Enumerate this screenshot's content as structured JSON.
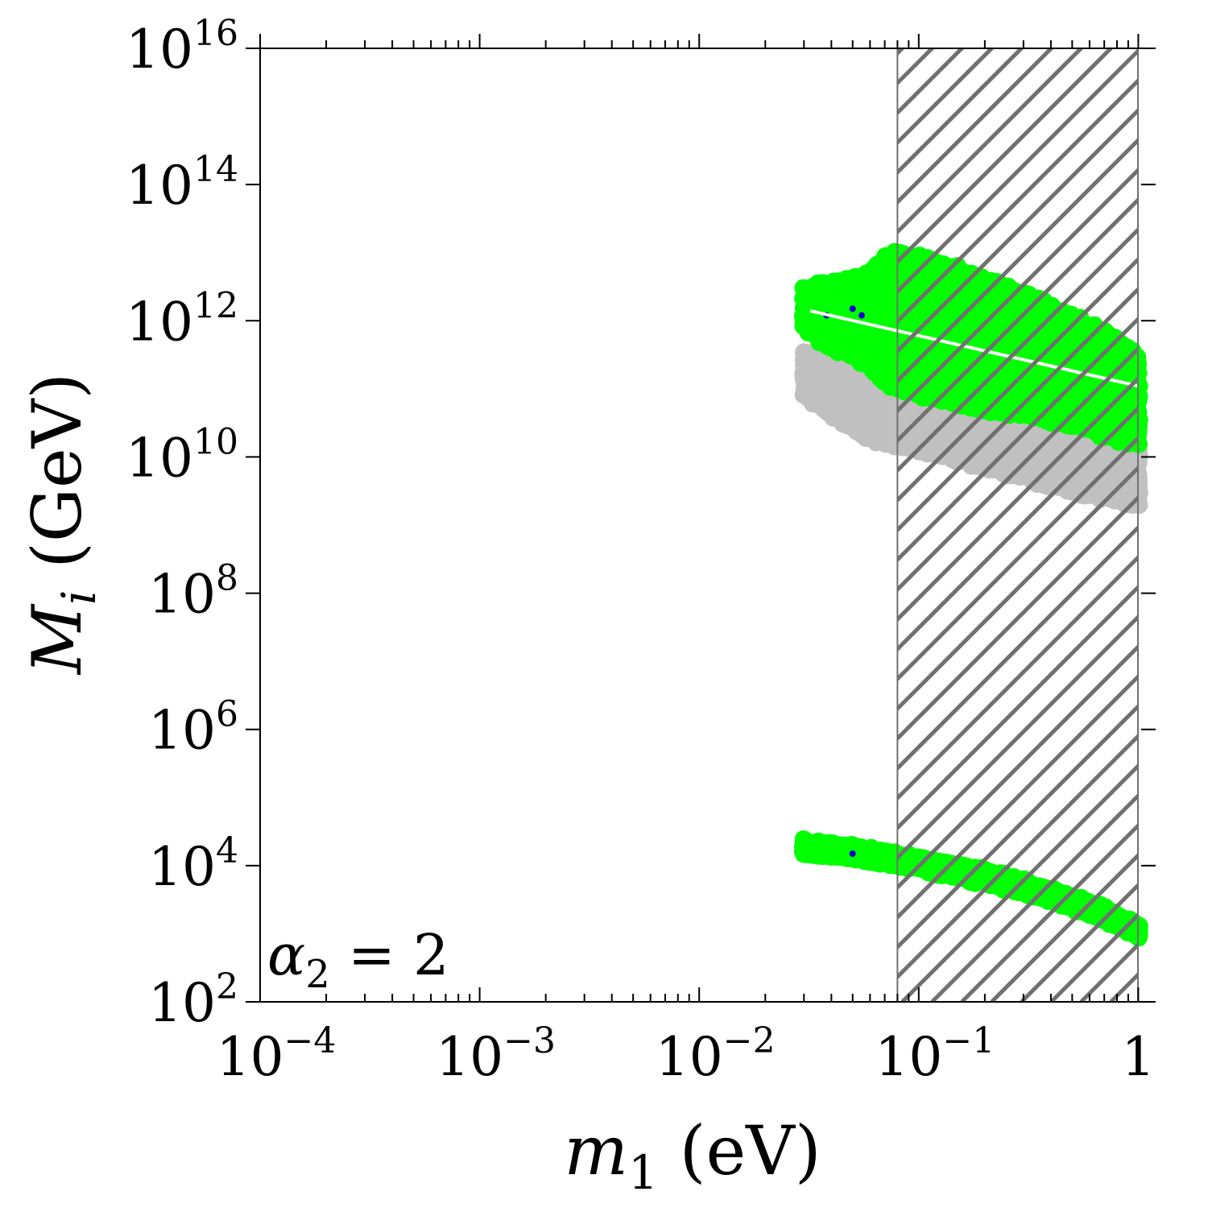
{
  "chart_data": {
    "type": "scatter",
    "x_scale": "log",
    "y_scale": "log",
    "xlim": [
      0.0001,
      1.2
    ],
    "ylim": [
      100,
      1e+16
    ],
    "xlabel": {
      "var": "m",
      "sub": "1",
      "unit": "(eV)"
    },
    "ylabel": {
      "var": "M",
      "sub": "i",
      "unit": "(GeV)"
    },
    "x_ticks": [
      {
        "value": 0.0001,
        "base": "10",
        "exp": "−4"
      },
      {
        "value": 0.001,
        "base": "10",
        "exp": "−3"
      },
      {
        "value": 0.01,
        "base": "10",
        "exp": "−2"
      },
      {
        "value": 0.1,
        "base": "10",
        "exp": "−1"
      },
      {
        "value": 1,
        "base": "1",
        "exp": ""
      }
    ],
    "y_ticks": [
      {
        "value": 100,
        "base": "10",
        "exp": "2"
      },
      {
        "value": 10000,
        "base": "10",
        "exp": "4"
      },
      {
        "value": 1000000,
        "base": "10",
        "exp": "6"
      },
      {
        "value": 100000000,
        "base": "10",
        "exp": "8"
      },
      {
        "value": 10000000000,
        "base": "10",
        "exp": "10"
      },
      {
        "value": 1000000000000,
        "base": "10",
        "exp": "12"
      },
      {
        "value": 100000000000000,
        "base": "10",
        "exp": "14"
      },
      {
        "value": 10000000000000000,
        "base": "10",
        "exp": "16"
      }
    ],
    "annotation": {
      "symbol": "α",
      "sub": "2",
      "rest": " = 2"
    },
    "excluded_region": {
      "x_min": 0.08,
      "x_max": 1.2,
      "style": "hatched",
      "color": "#707070"
    },
    "colors": {
      "green": "#00ff00",
      "gray": "#c0c0c0",
      "blue": "#0000cc",
      "hatch": "#707070"
    },
    "series": [
      {
        "color": "#c0c0c0",
        "region": "band",
        "x": [
          0.03,
          0.04,
          0.05,
          0.06,
          0.08,
          0.1,
          0.15,
          0.2,
          0.3,
          0.5,
          0.7,
          1.0
        ],
        "y_low": [
          80000000000.0,
          40000000000.0,
          25000000000.0,
          18000000000.0,
          14000000000.0,
          12000000000.0,
          9000000000.0,
          7000000000.0,
          5000000000.0,
          3000000000.0,
          2500000000.0,
          2000000000.0
        ],
        "y_high": [
          350000000000.0,
          300000000000.0,
          250000000000.0,
          200000000000.0,
          160000000000.0,
          130000000000.0,
          100000000000.0,
          80000000000.0,
          60000000000.0,
          40000000000.0,
          30000000000.0,
          25000000000.0
        ]
      },
      {
        "color": "#00ff00",
        "region": "band",
        "x": [
          0.03,
          0.035,
          0.04,
          0.05,
          0.06,
          0.07,
          0.08,
          0.1,
          0.15,
          0.2,
          0.3,
          0.5,
          0.7,
          1.0
        ],
        "y_low": [
          800000000000.0,
          500000000000.0,
          400000000000.0,
          300000000000.0,
          200000000000.0,
          120000000000.0,
          100000000000.0,
          80000000000.0,
          60000000000.0,
          50000000000.0,
          40000000000.0,
          30000000000.0,
          20000000000.0,
          15000000000.0
        ],
        "y_high": [
          3000000000000.0,
          3500000000000.0,
          3500000000000.0,
          4000000000000.0,
          5000000000000.0,
          9000000000000.0,
          10000000000000.0,
          9000000000000.0,
          6000000000000.0,
          4000000000000.0,
          2500000000000.0,
          1200000000000.0,
          700000000000.0,
          300000000000.0
        ]
      },
      {
        "color": "#00ff00",
        "region": "band",
        "x": [
          0.03,
          0.05,
          0.08,
          0.1,
          0.2,
          0.3,
          0.5,
          0.7,
          1.0
        ],
        "y_low": [
          15000,
          13000,
          10000,
          9000,
          5500,
          4000,
          2400,
          1600,
          900
        ],
        "y_high": [
          23000,
          19000,
          15000,
          13000,
          8500,
          6000,
          3500,
          2400,
          1300
        ]
      },
      {
        "color": "#0000cc",
        "region": "points",
        "x": [
          0.038,
          0.05,
          0.055,
          0.05
        ],
        "y": [
          1200000000000.0,
          1500000000000.0,
          1200000000000.0,
          15000
        ]
      }
    ]
  }
}
